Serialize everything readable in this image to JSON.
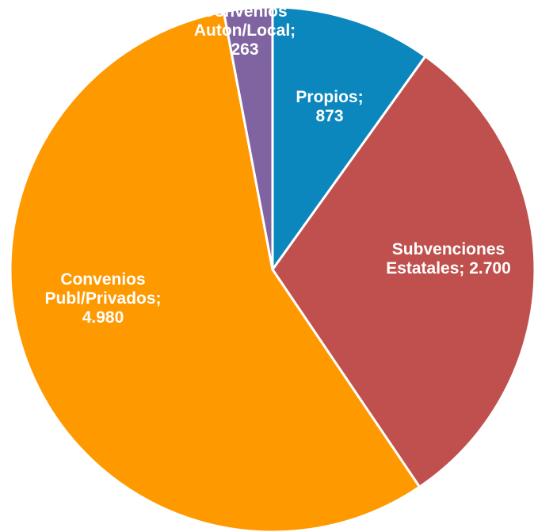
{
  "chart_data": {
    "type": "pie",
    "title": "",
    "thousands_separator": ".",
    "slices": [
      {
        "label": "Propios",
        "value": 873,
        "value_text": "873",
        "color": "#0B87BE"
      },
      {
        "label": "Subvenciones Estatales",
        "value": 2700,
        "value_text": "2.700",
        "color": "#C0504D"
      },
      {
        "label": "Convenios Publ/Privados",
        "value": 4980,
        "value_text": "4.980",
        "color": "#FF9900"
      },
      {
        "label": "Convenios Auton/Local",
        "value": 263,
        "value_text": "263",
        "color": "#8064A2"
      }
    ],
    "label_lines": [
      [
        "Propios;",
        "873"
      ],
      [
        "Subvenciones",
        "Estatales; 2.700"
      ],
      [
        "Convenios",
        "Publ/Privados;",
        "4.980"
      ],
      [
        "Convenios",
        "Auton/Local;",
        "263"
      ]
    ],
    "start_angle": "12 o'clock",
    "direction": "clockwise",
    "legend": "none"
  }
}
